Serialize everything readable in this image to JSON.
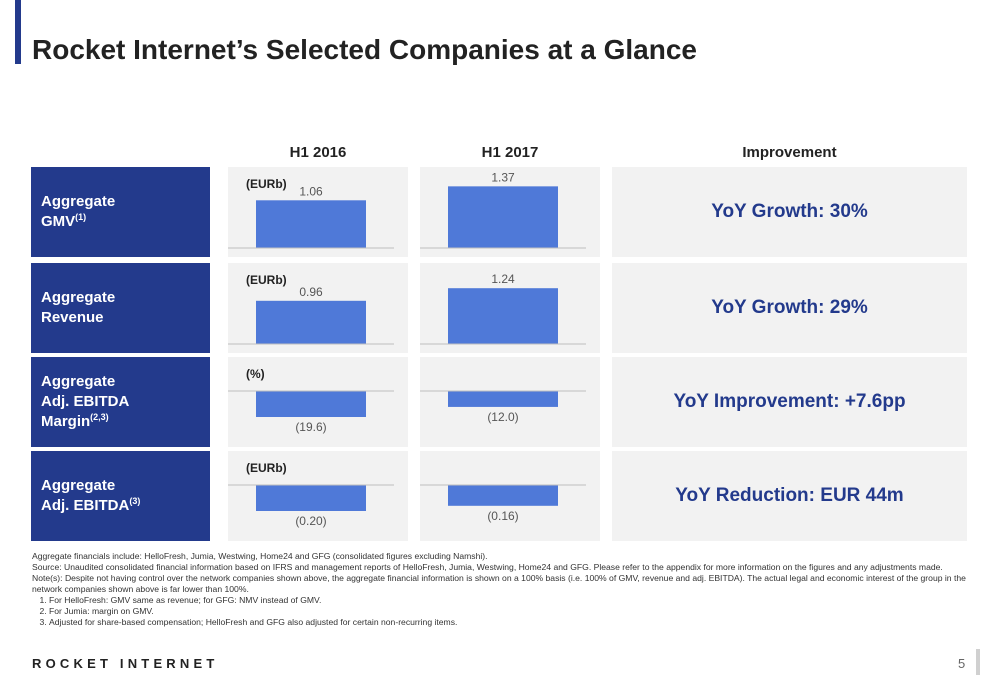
{
  "title": "Rocket Internet’s Selected Companies at a Glance",
  "colors": {
    "accent": "#233a8c",
    "bar": "#4f79d8",
    "cell_bg": "#f2f2f2",
    "baseline": "#bfbfbf"
  },
  "columns": {
    "h1_2016": "H1 2016",
    "h1_2017": "H1 2017",
    "improvement": "Improvement"
  },
  "rows": [
    {
      "label_lines": [
        "Aggregate",
        "GMV"
      ],
      "label_sup": "(1)",
      "unit": "(EURb)",
      "improvement": "YoY Growth: 30%"
    },
    {
      "label_lines": [
        "Aggregate",
        "Revenue"
      ],
      "label_sup": "",
      "unit": "(EURb)",
      "improvement": "YoY Growth: 29%"
    },
    {
      "label_lines": [
        "Aggregate",
        "Adj. EBITDA",
        "Margin"
      ],
      "label_sup": "(2,3)",
      "unit": "(%)",
      "improvement": "YoY Improvement: +7.6pp"
    },
    {
      "label_lines": [
        "Aggregate",
        "Adj. EBITDA"
      ],
      "label_sup": "(3)",
      "unit": "(EURb)",
      "improvement": "YoY Reduction: EUR 44m"
    }
  ],
  "chart_data": [
    {
      "type": "bar",
      "title": "Aggregate GMV",
      "unit": "(EURb)",
      "categories": [
        "H1 2016",
        "H1 2017"
      ],
      "values": [
        1.06,
        1.37
      ],
      "labels": [
        "1.06",
        "1.37"
      ]
    },
    {
      "type": "bar",
      "title": "Aggregate Revenue",
      "unit": "(EURb)",
      "categories": [
        "H1 2016",
        "H1 2017"
      ],
      "values": [
        0.96,
        1.24
      ],
      "labels": [
        "0.96",
        "1.24"
      ]
    },
    {
      "type": "bar",
      "title": "Aggregate Adj. EBITDA Margin",
      "unit": "(%)",
      "categories": [
        "H1 2016",
        "H1 2017"
      ],
      "values": [
        -19.6,
        -12.0
      ],
      "labels": [
        "(19.6)",
        "(12.0)"
      ]
    },
    {
      "type": "bar",
      "title": "Aggregate Adj. EBITDA",
      "unit": "(EURb)",
      "categories": [
        "H1 2016",
        "H1 2017"
      ],
      "values": [
        -0.2,
        -0.16
      ],
      "labels": [
        "(0.20)",
        "(0.16)"
      ]
    }
  ],
  "footnotes": {
    "intro": "Aggregate financials include: HelloFresh, Jumia, Westwing, Home24 and GFG (consolidated figures excluding Namshi).",
    "source": "Source: Unaudited consolidated financial information based on IFRS and management reports of HelloFresh, Jumia, Westwing, Home24 and GFG. Please refer to the appendix for more information on the figures and any adjustments made.",
    "note": "Note(s): Despite not having control over the network companies shown above, the aggregate financial information is shown on a 100% basis (i.e. 100% of GMV, revenue and adj. EBITDA). The actual legal and economic interest of the group in the network companies shown above is far lower than 100%.",
    "items": [
      "For HelloFresh: GMV same as revenue; for GFG: NMV instead of GMV.",
      "For Jumia: margin on GMV.",
      "Adjusted for share-based compensation; HelloFresh and GFG also adjusted for certain non-recurring items."
    ]
  },
  "logo": "ROCKET INTERNET",
  "page_number": "5"
}
